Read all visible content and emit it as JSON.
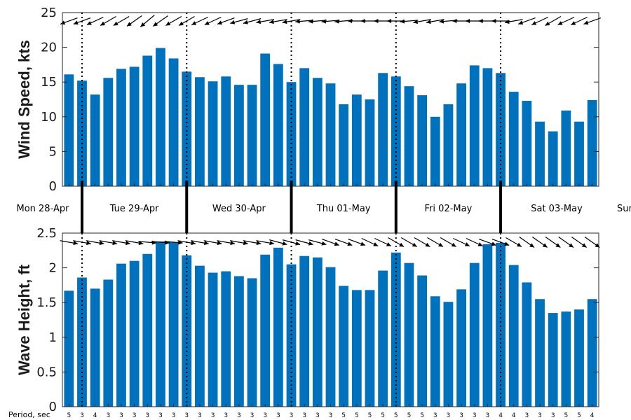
{
  "colors": {
    "bar": "#0072bd",
    "axis": "#262626",
    "arrow": "#000000"
  },
  "days": [
    "Mon 28-Apr",
    "Tue 29-Apr",
    "Wed 30-Apr",
    "Thu 01-May",
    "Fri 02-May",
    "Sat 03-May",
    "Sun"
  ],
  "period_title": "Period, sec",
  "chart_data": [
    {
      "type": "bar",
      "title": "",
      "ylabel": "Wind Speed, kts",
      "xlabel": "",
      "ylim": [
        0,
        25
      ],
      "yticks": [
        "0",
        "5",
        "10",
        "15",
        "20",
        "25"
      ],
      "grid": false,
      "values": [
        16.1,
        15.2,
        13.2,
        15.6,
        16.9,
        17.2,
        18.8,
        19.9,
        18.4,
        16.5,
        15.7,
        15.1,
        15.8,
        14.6,
        14.6,
        19.1,
        17.6,
        15.0,
        17.0,
        15.6,
        14.8,
        11.8,
        13.2,
        12.5,
        16.3,
        15.8,
        14.4,
        13.1,
        10.0,
        11.8,
        14.8,
        17.4,
        17.0,
        16.3,
        13.6,
        12.3,
        9.3,
        7.9,
        10.9,
        9.3,
        12.4
      ],
      "direction_arrows_deg": [
        200,
        200,
        205,
        210,
        210,
        215,
        220,
        215,
        210,
        210,
        205,
        205,
        200,
        195,
        195,
        190,
        190,
        190,
        185,
        185,
        185,
        185,
        180,
        180,
        180,
        180,
        185,
        190,
        190,
        185,
        180,
        180,
        180,
        180,
        190,
        200,
        205,
        210,
        205,
        205,
        200
      ]
    },
    {
      "type": "bar",
      "title": "",
      "ylabel": "Wave Height, ft",
      "xlabel": "",
      "ylim": [
        0,
        2.5
      ],
      "yticks": [
        "0",
        "0.5",
        "1",
        "1.5",
        "2",
        "2.5"
      ],
      "grid": false,
      "values": [
        1.67,
        1.86,
        1.7,
        1.83,
        2.06,
        2.1,
        2.2,
        2.38,
        2.37,
        2.18,
        2.03,
        1.93,
        1.95,
        1.88,
        1.85,
        2.19,
        2.29,
        2.05,
        2.17,
        2.15,
        2.01,
        1.74,
        1.68,
        1.68,
        1.96,
        2.22,
        2.07,
        1.89,
        1.59,
        1.51,
        1.69,
        2.07,
        2.34,
        2.36,
        2.04,
        1.79,
        1.55,
        1.35,
        1.37,
        1.4,
        1.55
      ],
      "direction_arrows_deg": [
        -10,
        -10,
        -10,
        -10,
        -10,
        -10,
        -5,
        -5,
        -5,
        -10,
        -10,
        -10,
        -10,
        -10,
        -10,
        -10,
        -15,
        -15,
        -15,
        -15,
        -20,
        -20,
        -20,
        -25,
        -25,
        -30,
        -30,
        -30,
        -30,
        -30,
        -25,
        -25,
        -20,
        -20,
        -30,
        -35,
        -35,
        -35,
        -35,
        -35,
        -35
      ],
      "periods": [
        "5",
        "3",
        "4",
        "3",
        "3",
        "3",
        "3",
        "3",
        "3",
        "3",
        "3",
        "3",
        "3",
        "3",
        "3",
        "3",
        "3",
        "3",
        "3",
        "3",
        "3",
        "5",
        "5",
        "5",
        "5",
        "5",
        "5",
        "5",
        "3",
        "3",
        "3",
        "3",
        "3",
        "4",
        "4",
        "3",
        "3",
        "3",
        "5",
        "5",
        "4"
      ]
    }
  ]
}
